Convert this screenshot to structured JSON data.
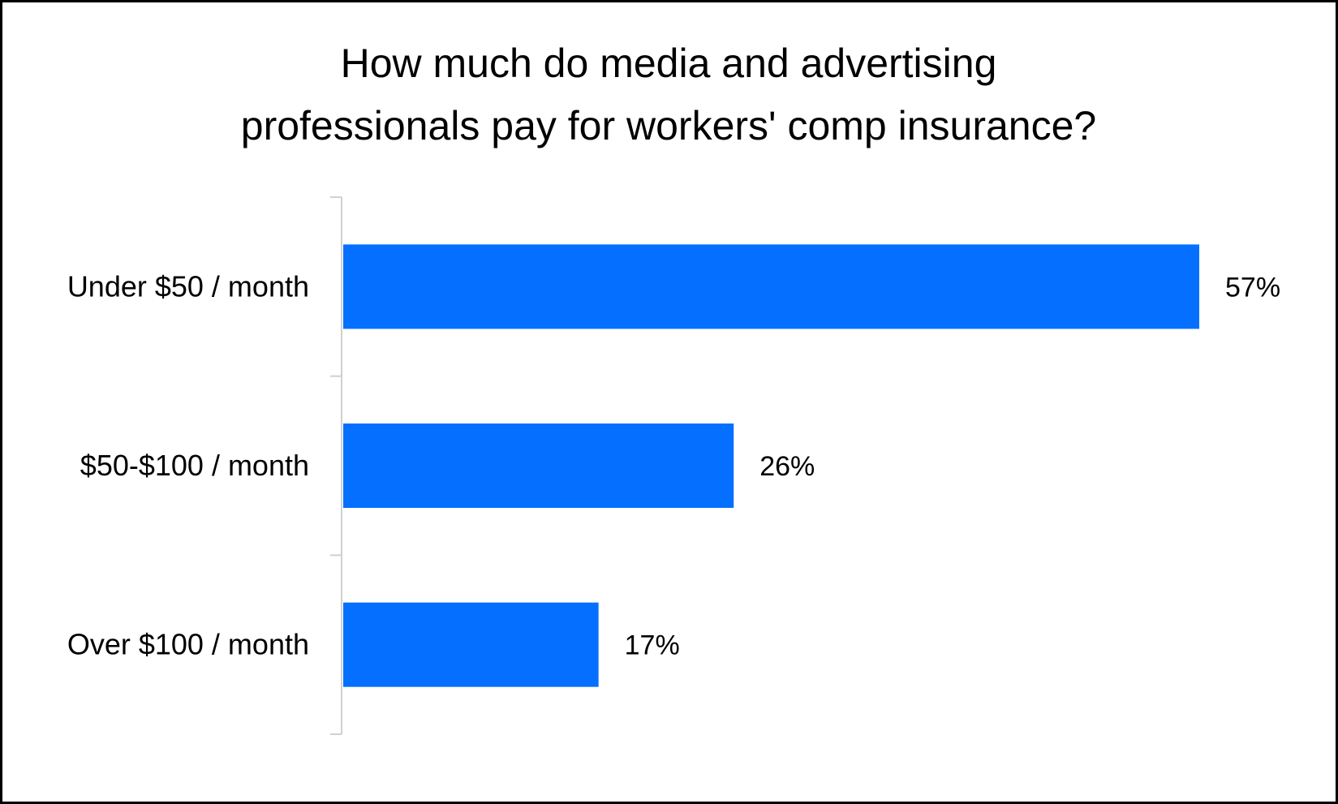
{
  "chart_data": {
    "type": "bar",
    "orientation": "horizontal",
    "title": "How much do media and advertising professionals pay for workers' comp insurance?",
    "title_lines": [
      "How much do media and advertising",
      "professionals pay for workers' comp insurance?"
    ],
    "categories": [
      "Under $50 / month",
      "$50-$100 / month",
      "Over $100 / month"
    ],
    "values": [
      57,
      26,
      17
    ],
    "value_labels": [
      "57%",
      "26%",
      "17%"
    ],
    "xlim": [
      0,
      57
    ],
    "bar_color": "#0570FF",
    "axis_color": "#D0D0D0",
    "grid": false,
    "legend": "none"
  }
}
